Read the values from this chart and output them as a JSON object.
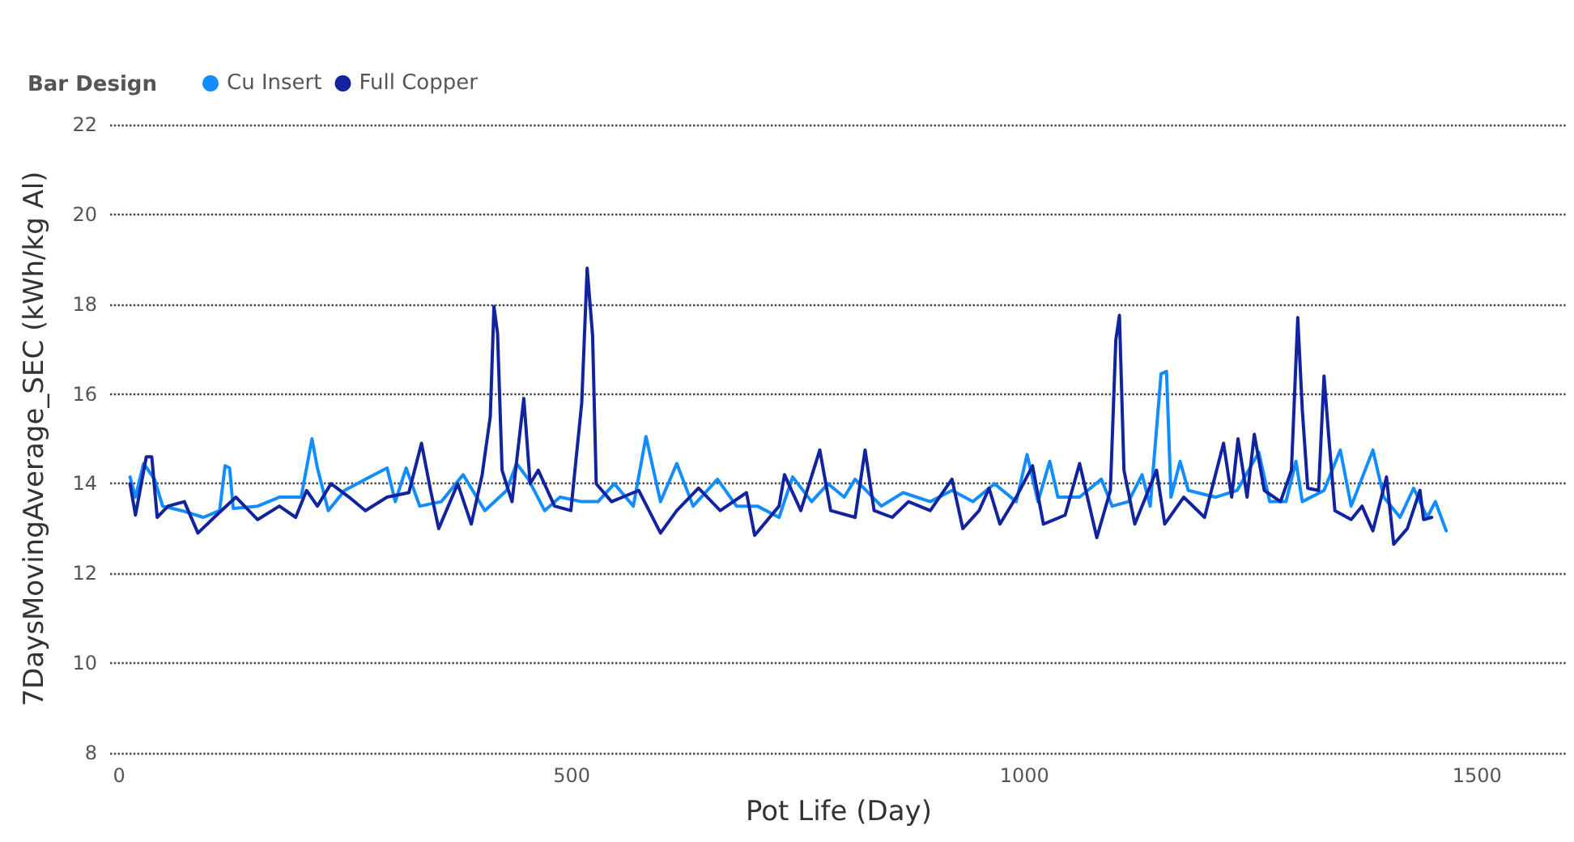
{
  "chart_data": {
    "type": "line",
    "xlabel": "Pot Life (Day)",
    "ylabel": "7DaysMovingAverage_SEC (kWh/kg Al)",
    "legend_title": "Bar Design",
    "legend": "top left",
    "grid": "y",
    "marker": "none",
    "line_style": "solid",
    "xlim": [
      -10,
      1600
    ],
    "xticks": [
      0,
      500,
      1000,
      1500
    ],
    "ylim": [
      8,
      22
    ],
    "yticks": [
      8,
      10,
      12,
      14,
      16,
      18,
      20,
      22
    ],
    "series": [
      {
        "name": "Cu Insert",
        "color": "#118dff",
        "x": [
          12,
          18,
          27,
          39,
          48,
          69,
          93,
          111,
          117,
          122,
          126,
          153,
          177,
          201,
          207,
          213,
          219,
          231,
          249,
          272,
          296,
          305,
          317,
          332,
          356,
          380,
          404,
          428,
          439,
          452,
          470,
          487,
          511,
          529,
          547,
          568,
          582,
          598,
          616,
          634,
          661,
          682,
          705,
          729,
          744,
          765,
          783,
          801,
          813,
          842,
          866,
          896,
          920,
          943,
          967,
          991,
          1003,
          1015,
          1028,
          1037,
          1061,
          1085,
          1097,
          1115,
          1130,
          1139,
          1151,
          1157,
          1162,
          1172,
          1181,
          1211,
          1235,
          1259,
          1271,
          1289,
          1300,
          1307,
          1331,
          1349,
          1361,
          1385,
          1397,
          1415,
          1430,
          1445,
          1454,
          1466
        ],
        "values": [
          14.15,
          13.7,
          14.45,
          14.1,
          13.5,
          13.4,
          13.25,
          13.4,
          14.4,
          14.35,
          13.45,
          13.5,
          13.7,
          13.7,
          14.35,
          15.0,
          14.35,
          13.4,
          13.85,
          14.1,
          14.35,
          13.6,
          14.35,
          13.5,
          13.6,
          14.2,
          13.4,
          13.85,
          14.45,
          14.1,
          13.4,
          13.7,
          13.6,
          13.6,
          14.0,
          13.5,
          15.05,
          13.6,
          14.45,
          13.5,
          14.1,
          13.5,
          13.5,
          13.25,
          14.15,
          13.6,
          14.0,
          13.7,
          14.1,
          13.5,
          13.8,
          13.6,
          13.85,
          13.6,
          14.0,
          13.6,
          14.65,
          13.6,
          14.5,
          13.7,
          13.7,
          14.1,
          13.5,
          13.6,
          14.2,
          13.5,
          16.45,
          16.5,
          13.7,
          14.5,
          13.85,
          13.7,
          13.85,
          14.7,
          13.6,
          13.6,
          14.5,
          13.6,
          13.85,
          14.75,
          13.5,
          14.75,
          13.7,
          13.25,
          13.9,
          13.25,
          13.6,
          12.95
        ]
      },
      {
        "name": "Full Copper",
        "color": "#12239e",
        "x": [
          12,
          18,
          30,
          36,
          42,
          54,
          72,
          87,
          105,
          129,
          153,
          177,
          195,
          207,
          219,
          234,
          254,
          272,
          296,
          320,
          334,
          344,
          353,
          374,
          389,
          401,
          410,
          414,
          418,
          423,
          434,
          447,
          454,
          463,
          481,
          499,
          511,
          517,
          523,
          527,
          544,
          574,
          598,
          616,
          640,
          664,
          693,
          702,
          729,
          735,
          753,
          774,
          786,
          813,
          824,
          834,
          854,
          872,
          896,
          920,
          932,
          950,
          961,
          973,
          991,
          1009,
          1021,
          1045,
          1061,
          1080,
          1095,
          1101,
          1105,
          1110,
          1122,
          1146,
          1155,
          1176,
          1199,
          1220,
          1229,
          1236,
          1246,
          1254,
          1265,
          1283,
          1295,
          1302,
          1307,
          1313,
          1325,
          1331,
          1336,
          1343,
          1361,
          1373,
          1385,
          1400,
          1408,
          1423,
          1437,
          1441,
          1450
        ],
        "values": [
          14.0,
          13.3,
          14.6,
          14.6,
          13.25,
          13.5,
          13.6,
          12.9,
          13.25,
          13.7,
          13.2,
          13.5,
          13.25,
          13.85,
          13.5,
          14.0,
          13.7,
          13.4,
          13.7,
          13.8,
          14.9,
          13.85,
          13.0,
          14.0,
          13.1,
          14.2,
          15.5,
          17.95,
          17.35,
          14.3,
          13.6,
          15.9,
          14.0,
          14.3,
          13.5,
          13.4,
          15.8,
          18.8,
          17.3,
          14.0,
          13.6,
          13.85,
          12.9,
          13.4,
          13.9,
          13.4,
          13.8,
          12.85,
          13.5,
          14.2,
          13.4,
          14.75,
          13.4,
          13.25,
          14.75,
          13.4,
          13.25,
          13.6,
          13.4,
          14.1,
          13.0,
          13.4,
          13.9,
          13.1,
          13.7,
          14.4,
          13.1,
          13.3,
          14.45,
          12.8,
          13.85,
          17.2,
          17.75,
          14.3,
          13.1,
          14.3,
          13.1,
          13.7,
          13.25,
          14.9,
          13.7,
          15.0,
          13.7,
          15.1,
          13.85,
          13.6,
          14.3,
          17.7,
          15.65,
          13.9,
          13.85,
          16.4,
          15.1,
          13.4,
          13.2,
          13.5,
          12.95,
          14.15,
          12.65,
          13.0,
          13.85,
          13.2,
          13.25
        ]
      }
    ]
  }
}
